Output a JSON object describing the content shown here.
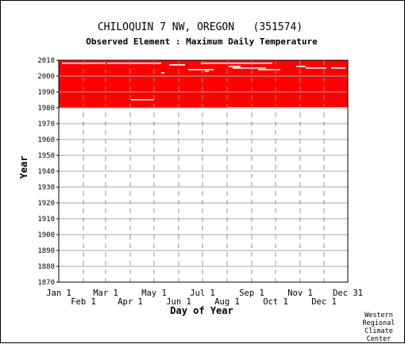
{
  "chart_data": {
    "type": "heatmap",
    "title": "CHILOQUIN 7 NW, OREGON   (351574)",
    "subtitle": "Observed Element : Maximum Daily Temperature",
    "xlabel": "Day of Year",
    "ylabel": "Year",
    "xlim": [
      1,
      365
    ],
    "ylim": [
      1870,
      2010
    ],
    "y_ticks": [
      1870,
      1880,
      1890,
      1900,
      1910,
      1920,
      1930,
      1940,
      1950,
      1960,
      1970,
      1980,
      1990,
      2000,
      2010
    ],
    "x_ticks_top": [
      {
        "label": "Jan 1",
        "day": 1
      },
      {
        "label": "Mar 1",
        "day": 60
      },
      {
        "label": "May 1",
        "day": 121
      },
      {
        "label": "Jul 1",
        "day": 182
      },
      {
        "label": "Sep 1",
        "day": 244
      },
      {
        "label": "Nov 1",
        "day": 305
      },
      {
        "label": "Dec 31",
        "day": 365
      }
    ],
    "x_ticks_bottom": [
      {
        "label": "Feb 1",
        "day": 32
      },
      {
        "label": "Apr 1",
        "day": 91
      },
      {
        "label": "Jun 1",
        "day": 152
      },
      {
        "label": "Aug 1",
        "day": 213
      },
      {
        "label": "Oct 1",
        "day": 274
      },
      {
        "label": "Dec 1",
        "day": 335
      }
    ],
    "grid": true,
    "data_color": "#ff0000",
    "gap_color": "#ffffff",
    "coverage": {
      "year_start": 1980,
      "year_end": 2010,
      "day_start": 1,
      "day_end": 365
    },
    "gaps": [
      {
        "year": 2008,
        "day_start": 5,
        "day_end": 60
      },
      {
        "year": 2008,
        "day_start": 62,
        "day_end": 130
      },
      {
        "year": 2008,
        "day_start": 180,
        "day_end": 270
      },
      {
        "year": 2007,
        "day_start": 140,
        "day_end": 160
      },
      {
        "year": 2006,
        "day_start": 215,
        "day_end": 230
      },
      {
        "year": 2006,
        "day_start": 300,
        "day_end": 312
      },
      {
        "year": 2005,
        "day_start": 220,
        "day_end": 262
      },
      {
        "year": 2005,
        "day_start": 312,
        "day_end": 338
      },
      {
        "year": 2005,
        "day_start": 344,
        "day_end": 362
      },
      {
        "year": 2004,
        "day_start": 164,
        "day_end": 196
      },
      {
        "year": 2004,
        "day_start": 252,
        "day_end": 280
      },
      {
        "year": 2003,
        "day_start": 185,
        "day_end": 190
      },
      {
        "year": 2002,
        "day_start": 130,
        "day_end": 134
      },
      {
        "year": 1985,
        "day_start": 92,
        "day_end": 121
      },
      {
        "year": 1980,
        "day_start": 213,
        "day_end": 365
      }
    ]
  },
  "credit": [
    "Western",
    "Regional",
    "Climate",
    "Center"
  ]
}
